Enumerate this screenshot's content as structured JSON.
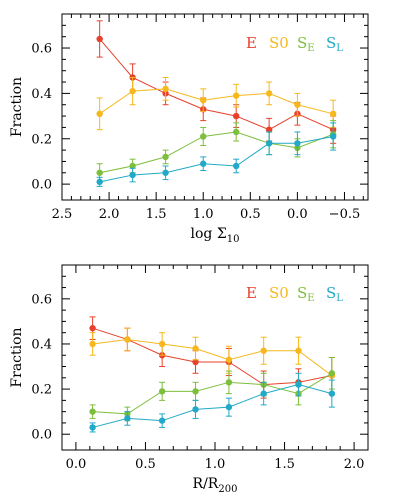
{
  "chart_data": [
    {
      "type": "line",
      "xlabel": "log Σ",
      "xlabel_subscript": "10",
      "ylabel": "Fraction",
      "xlim": [
        2.5,
        -0.75
      ],
      "ylim": [
        -0.07,
        0.75
      ],
      "x_reversed": true,
      "xticks": [
        2.5,
        2.0,
        1.5,
        1.0,
        0.5,
        0.0,
        -0.5
      ],
      "xtick_labels": [
        "2.5",
        "2.0",
        "1.5",
        "1.0",
        "0.5",
        "0.0",
        "−0.5"
      ],
      "yticks": [
        0.0,
        0.2,
        0.4,
        0.6
      ],
      "ytick_labels": [
        "0.0",
        "0.2",
        "0.4",
        "0.6"
      ],
      "legend_placement": "top-right",
      "series": [
        {
          "name": "E",
          "subscript": "",
          "color": "#e8402a",
          "x": [
            2.1,
            1.75,
            1.4,
            1.0,
            0.65,
            0.3,
            0.0,
            -0.38
          ],
          "y": [
            0.64,
            0.47,
            0.4,
            0.33,
            0.3,
            0.24,
            0.31,
            0.24
          ],
          "err": [
            0.08,
            0.06,
            0.05,
            0.05,
            0.05,
            0.05,
            0.05,
            0.06
          ]
        },
        {
          "name": "S0",
          "subscript": "",
          "color": "#f6b81d",
          "x": [
            2.1,
            1.75,
            1.4,
            1.0,
            0.65,
            0.3,
            0.0,
            -0.38
          ],
          "y": [
            0.31,
            0.41,
            0.42,
            0.37,
            0.39,
            0.4,
            0.35,
            0.31
          ],
          "err": [
            0.07,
            0.06,
            0.05,
            0.05,
            0.05,
            0.05,
            0.05,
            0.06
          ]
        },
        {
          "name": "S",
          "subscript": "E",
          "color": "#7cbf3c",
          "x": [
            2.1,
            1.75,
            1.4,
            1.0,
            0.65,
            0.3,
            0.0,
            -0.38
          ],
          "y": [
            0.05,
            0.08,
            0.12,
            0.21,
            0.23,
            0.18,
            0.16,
            0.22
          ],
          "err": [
            0.04,
            0.03,
            0.03,
            0.04,
            0.04,
            0.05,
            0.04,
            0.06
          ]
        },
        {
          "name": "S",
          "subscript": "L",
          "color": "#22a9c7",
          "x": [
            2.1,
            1.75,
            1.4,
            1.0,
            0.65,
            0.3,
            0.0,
            -0.38
          ],
          "y": [
            0.01,
            0.04,
            0.05,
            0.09,
            0.08,
            0.18,
            0.18,
            0.21
          ],
          "err": [
            0.02,
            0.03,
            0.03,
            0.03,
            0.03,
            0.05,
            0.05,
            0.06
          ]
        }
      ]
    },
    {
      "type": "line",
      "xlabel": "R/R",
      "xlabel_subscript": "200",
      "ylabel": "Fraction",
      "xlim": [
        -0.1,
        2.1
      ],
      "ylim": [
        -0.07,
        0.75
      ],
      "x_reversed": false,
      "xticks": [
        0.0,
        0.5,
        1.0,
        1.5,
        2.0
      ],
      "xtick_labels": [
        "0.0",
        "0.5",
        "1.0",
        "1.5",
        "2.0"
      ],
      "yticks": [
        0.0,
        0.2,
        0.4,
        0.6
      ],
      "ytick_labels": [
        "0.0",
        "0.2",
        "0.4",
        "0.6"
      ],
      "legend_placement": "top-right",
      "series": [
        {
          "name": "E",
          "subscript": "",
          "color": "#e8402a",
          "x": [
            0.12,
            0.37,
            0.62,
            0.86,
            1.1,
            1.35,
            1.6,
            1.84
          ],
          "y": [
            0.47,
            0.42,
            0.35,
            0.32,
            0.32,
            0.22,
            0.23,
            0.26
          ],
          "err": [
            0.05,
            0.05,
            0.05,
            0.05,
            0.06,
            0.06,
            0.06,
            0.08
          ]
        },
        {
          "name": "S0",
          "subscript": "",
          "color": "#f6b81d",
          "x": [
            0.12,
            0.37,
            0.62,
            0.86,
            1.1,
            1.35,
            1.6,
            1.84
          ],
          "y": [
            0.4,
            0.42,
            0.4,
            0.38,
            0.33,
            0.37,
            0.37,
            0.26
          ],
          "err": [
            0.05,
            0.05,
            0.05,
            0.05,
            0.06,
            0.06,
            0.06,
            0.08
          ]
        },
        {
          "name": "S",
          "subscript": "E",
          "color": "#7cbf3c",
          "x": [
            0.12,
            0.37,
            0.62,
            0.86,
            1.1,
            1.35,
            1.6,
            1.84
          ],
          "y": [
            0.1,
            0.09,
            0.19,
            0.19,
            0.23,
            0.22,
            0.18,
            0.27
          ],
          "err": [
            0.03,
            0.03,
            0.04,
            0.04,
            0.05,
            0.05,
            0.05,
            0.07
          ]
        },
        {
          "name": "S",
          "subscript": "L",
          "color": "#22a9c7",
          "x": [
            0.12,
            0.37,
            0.62,
            0.86,
            1.1,
            1.35,
            1.6,
            1.84
          ],
          "y": [
            0.03,
            0.07,
            0.06,
            0.11,
            0.12,
            0.18,
            0.22,
            0.18
          ],
          "err": [
            0.02,
            0.03,
            0.03,
            0.04,
            0.04,
            0.05,
            0.05,
            0.06
          ]
        }
      ]
    }
  ]
}
